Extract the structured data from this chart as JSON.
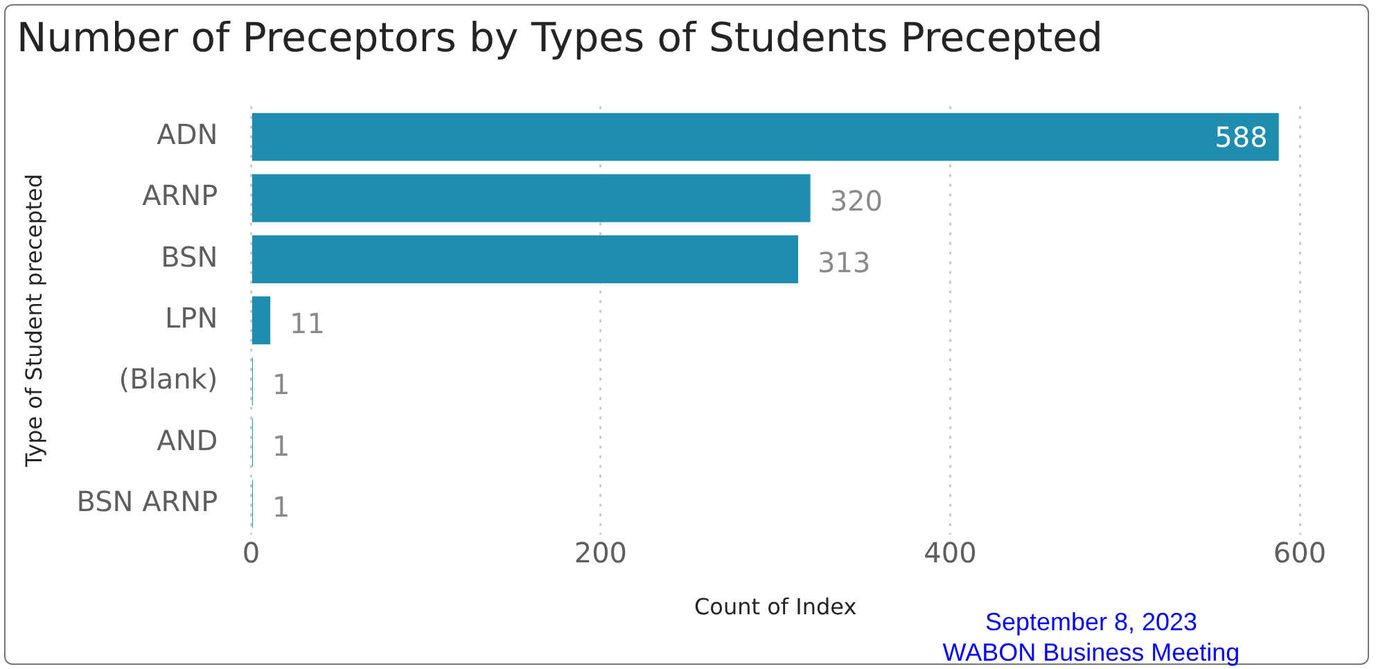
{
  "chart_data": {
    "type": "bar",
    "orientation": "horizontal",
    "title": "Number of Preceptors by Types of Students Precepted",
    "xlabel": "Count of Index",
    "ylabel": "Type of Student precepted",
    "categories": [
      "ADN",
      "ARNP",
      "BSN",
      "LPN",
      "(Blank)",
      "AND",
      "BSN ARNP"
    ],
    "values": [
      588,
      320,
      313,
      11,
      1,
      1,
      1
    ],
    "color": "#1f8db0",
    "xlim": [
      0,
      600
    ],
    "xticks": [
      0,
      200,
      400,
      600
    ],
    "grid": "x",
    "data_labels": true,
    "annotations": [
      "September 8, 2023",
      "WABON Business Meeting"
    ]
  }
}
